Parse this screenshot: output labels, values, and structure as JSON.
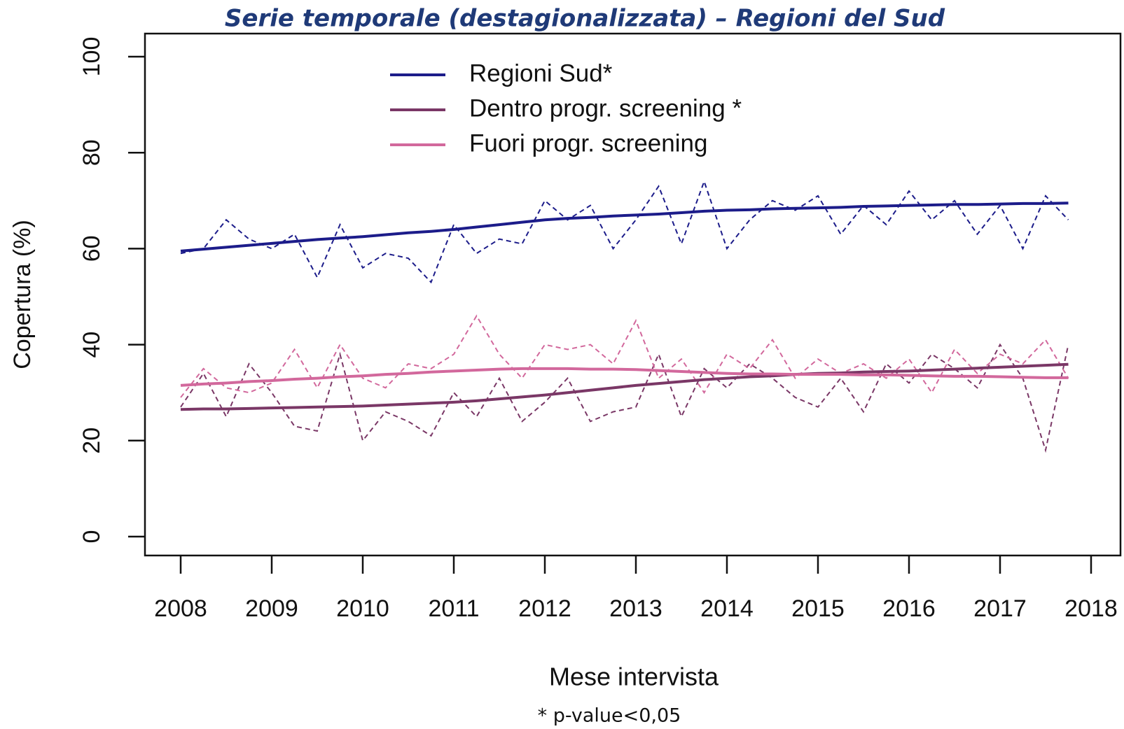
{
  "chart_data": {
    "type": "line",
    "title": "Serie temporale (destagionalizzata) – Regioni del Sud",
    "x_label": "Mese intervista",
    "y_label": "Copertura (%)",
    "footnote": "* p-value<0,05",
    "x": [
      2008,
      2008.25,
      2008.5,
      2008.75,
      2009,
      2009.25,
      2009.5,
      2009.75,
      2010,
      2010.25,
      2010.5,
      2010.75,
      2011,
      2011.25,
      2011.5,
      2011.75,
      2012,
      2012.25,
      2012.5,
      2012.75,
      2013,
      2013.25,
      2013.5,
      2013.75,
      2014,
      2014.25,
      2014.5,
      2014.75,
      2015,
      2015.25,
      2015.5,
      2015.75,
      2016,
      2016.25,
      2016.5,
      2016.75,
      2017,
      2017.25,
      2017.5,
      2017.75
    ],
    "xlim": [
      2008,
      2018
    ],
    "xticks": [
      2008,
      2009,
      2010,
      2011,
      2012,
      2013,
      2014,
      2015,
      2016,
      2017,
      2018
    ],
    "ylim": [
      0,
      100
    ],
    "yticks": [
      0,
      20,
      40,
      60,
      80,
      100
    ],
    "legend": "top",
    "series": [
      {
        "name": "Regioni Sud*",
        "color": "#1c1c8a",
        "values": [
          59,
          60,
          66,
          62,
          60,
          63,
          54,
          65,
          56,
          59,
          58,
          53,
          65,
          59,
          62,
          61,
          70,
          66,
          69,
          60,
          66,
          73,
          61,
          74,
          60,
          66,
          70,
          68,
          71,
          63,
          69,
          65,
          72,
          66,
          70,
          63,
          69,
          60,
          71,
          66
        ],
        "trend": [
          59.5,
          59.9,
          60.3,
          60.7,
          61.1,
          61.5,
          61.9,
          62.2,
          62.5,
          62.9,
          63.3,
          63.6,
          64,
          64.5,
          65,
          65.5,
          66,
          66.3,
          66.5,
          66.8,
          67,
          67.2,
          67.5,
          67.8,
          68,
          68.1,
          68.3,
          68.4,
          68.5,
          68.6,
          68.8,
          68.9,
          69,
          69.1,
          69.2,
          69.2,
          69.3,
          69.4,
          69.4,
          69.5
        ]
      },
      {
        "name": "Dentro progr. screening *",
        "color": "#7a3766",
        "values": [
          27,
          34,
          25,
          36,
          30,
          23,
          22,
          38,
          20,
          26,
          24,
          21,
          30,
          25,
          33,
          24,
          28,
          33,
          24,
          26,
          27,
          38,
          25,
          35,
          31,
          36,
          33,
          29,
          27,
          33,
          26,
          36,
          32,
          38,
          35,
          31,
          40,
          33,
          18,
          40
        ],
        "trend": [
          26.5,
          26.6,
          26.6,
          26.7,
          26.8,
          26.9,
          27,
          27.1,
          27.2,
          27.4,
          27.6,
          27.8,
          28,
          28.3,
          28.7,
          29.1,
          29.5,
          30,
          30.5,
          31,
          31.5,
          31.9,
          32.3,
          32.7,
          33,
          33.3,
          33.5,
          33.8,
          34,
          34.1,
          34.3,
          34.4,
          34.5,
          34.7,
          34.9,
          35.1,
          35.3,
          35.5,
          35.7,
          35.9
        ]
      },
      {
        "name": "Fuori progr. screening",
        "color": "#d2689c",
        "values": [
          29,
          35,
          31,
          30,
          32,
          39,
          31,
          40,
          33,
          31,
          36,
          35,
          38,
          46,
          38,
          33,
          40,
          39,
          40,
          36,
          45,
          33,
          37,
          30,
          38,
          35,
          41,
          33,
          37,
          34,
          36,
          33,
          37,
          30,
          39,
          34,
          38,
          36,
          41,
          33
        ],
        "trend": [
          31.5,
          31.8,
          32,
          32.3,
          32.5,
          32.8,
          33,
          33.3,
          33.5,
          33.8,
          34,
          34.3,
          34.5,
          34.7,
          34.9,
          35,
          35,
          35,
          34.9,
          34.9,
          34.8,
          34.6,
          34.4,
          34.2,
          34,
          33.9,
          33.9,
          33.8,
          33.8,
          33.8,
          33.7,
          33.7,
          33.6,
          33.5,
          33.4,
          33.4,
          33.3,
          33.2,
          33.1,
          33.1
        ]
      }
    ]
  }
}
